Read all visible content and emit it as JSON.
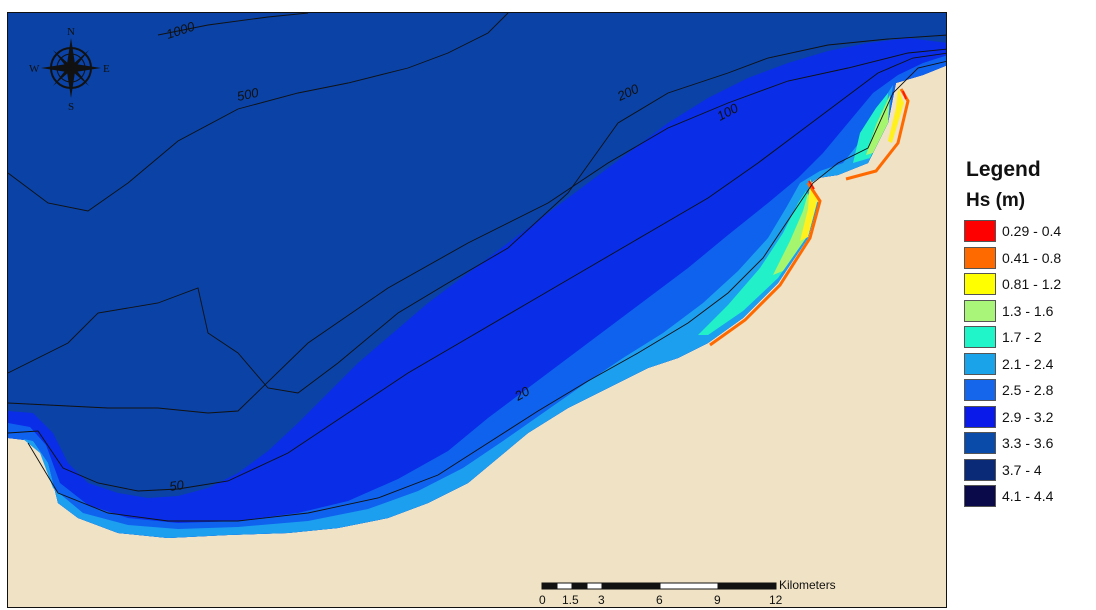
{
  "map": {
    "colors": {
      "land": "#f0e2c4",
      "deep": "#0a42a6",
      "mid": "#0a2de8",
      "blue": "#0f62ee",
      "light": "#1d9ff0",
      "cyan": "#22f0c8",
      "green": "#a6f56e",
      "yellow": "#fff01e",
      "orange": "#ff6a00",
      "red": "#ff1a00",
      "contour": "#111111"
    },
    "contour_labels": [
      "1000",
      "500",
      "200",
      "100",
      "50",
      "20"
    ],
    "compass": {
      "icon": "compass-rose-icon",
      "n": "N",
      "s": "S",
      "e": "E",
      "w": "W"
    },
    "scale_bar": {
      "unit": "Kilometers",
      "ticks": [
        "0",
        "1.5",
        "3",
        "6",
        "9",
        "12"
      ]
    }
  },
  "legend": {
    "title": "Legend",
    "subtitle": "Hs (m)",
    "items": [
      {
        "label": "0.29 - 0.4",
        "color": "#ff0000"
      },
      {
        "label": "0.41 - 0.8",
        "color": "#ff6a00"
      },
      {
        "label": "0.81 - 1.2",
        "color": "#ffff00"
      },
      {
        "label": "1.3 - 1.6",
        "color": "#a8f57a"
      },
      {
        "label": "1.7 - 2",
        "color": "#1ff5c8"
      },
      {
        "label": "2.1 - 2.4",
        "color": "#1aa3e8"
      },
      {
        "label": "2.5 - 2.8",
        "color": "#1566ea"
      },
      {
        "label": "2.9 - 3.2",
        "color": "#0a1ae8"
      },
      {
        "label": "3.3 - 3.6",
        "color": "#0a4aa8"
      },
      {
        "label": "3.7 - 4",
        "color": "#0a2a78"
      },
      {
        "label": "4.1 - 4.4",
        "color": "#0a0a4a"
      }
    ]
  }
}
